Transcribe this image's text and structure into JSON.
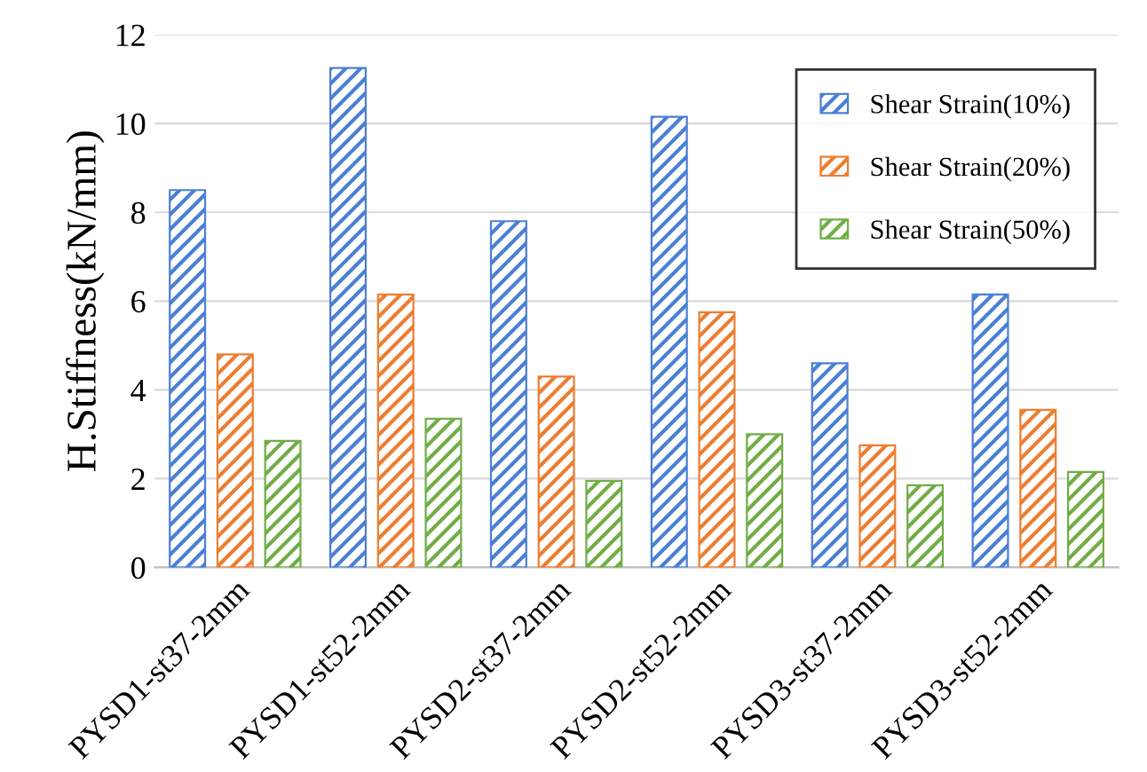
{
  "chart_data": {
    "type": "bar",
    "ylabel": "H.Stiffness(kN/mm)",
    "categories": [
      "PYSD1-st37-2mm",
      "PYSD1-st52-2mm",
      "PYSD2-st37-2mm",
      "PYSD2-st52-2mm",
      "PYSD3-st37-2mm",
      "PYSD3-st52-2mm"
    ],
    "series": [
      {
        "name": "Shear Strain(10%)",
        "color": "#4a7fd4",
        "values": [
          8.5,
          11.25,
          7.8,
          10.15,
          4.6,
          6.15
        ]
      },
      {
        "name": "Shear Strain(20%)",
        "color": "#ed7d31",
        "values": [
          4.8,
          6.15,
          4.3,
          5.75,
          2.75,
          3.55
        ]
      },
      {
        "name": "Shear Strain(50%)",
        "color": "#70ad47",
        "values": [
          2.85,
          3.35,
          1.95,
          3.0,
          1.85,
          2.15
        ]
      }
    ],
    "ylim": [
      0,
      12
    ],
    "yticks": [
      0,
      2,
      4,
      6,
      8,
      10,
      12
    ],
    "grid": "y",
    "legend": "top right"
  }
}
